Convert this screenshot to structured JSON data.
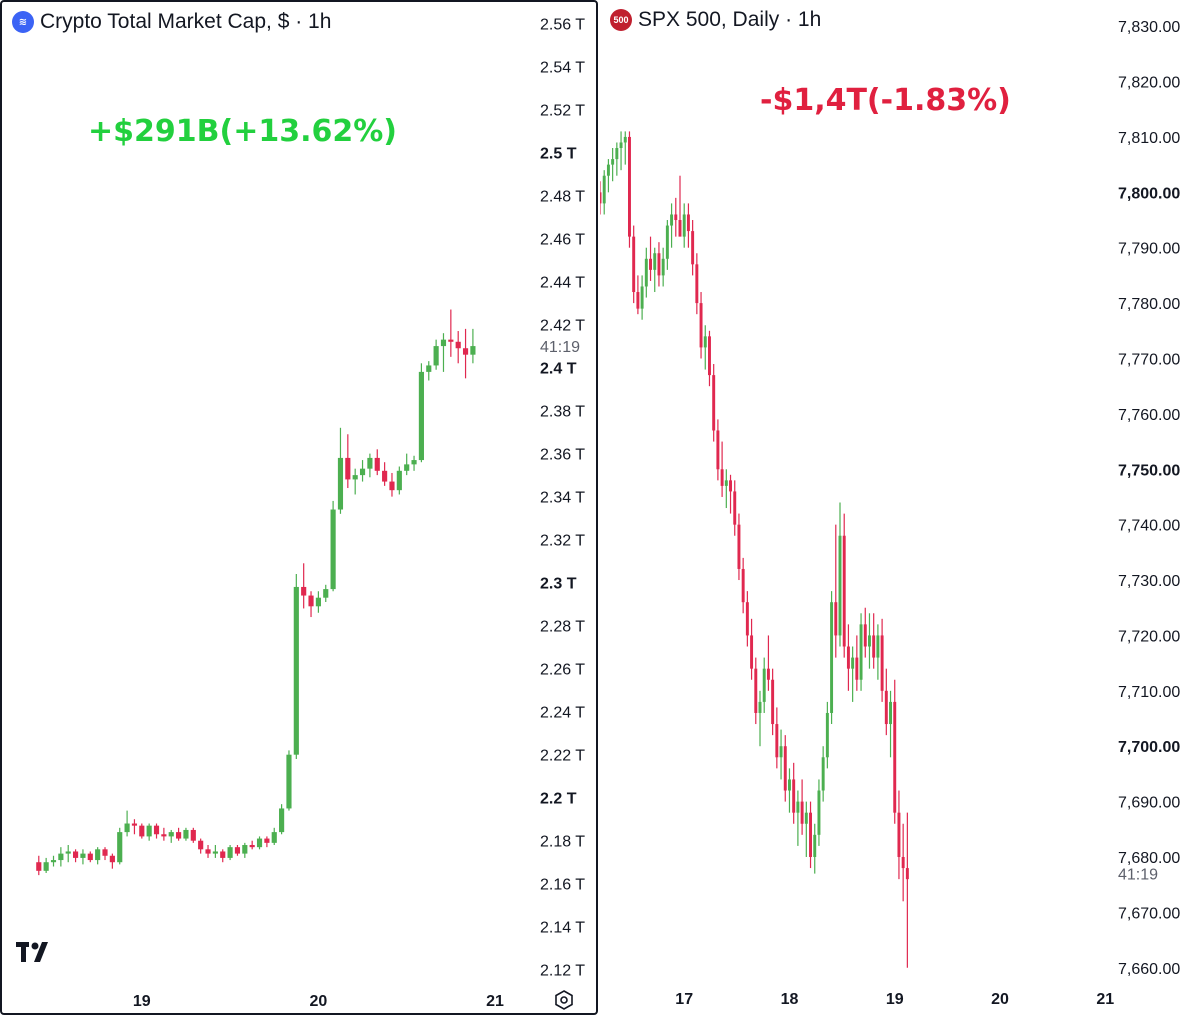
{
  "left": {
    "title": "Crypto Total Market Cap, $ · 1h",
    "icon": "crypto-market-cap-icon",
    "change_label": "+$291B(+13.62%)",
    "change_color": "#22d03e",
    "countdown": "41:19",
    "logo": "tradingview-logo-icon",
    "settings_icon": "gear-icon"
  },
  "right": {
    "title": "SPX 500, Daily · 1h",
    "icon_label": "500",
    "change_label": "-$1,4T(-1.83%)",
    "change_color": "#e0203f",
    "countdown": "41:19"
  },
  "colors": {
    "up": "#4caf50",
    "down": "#e0284f",
    "text": "#131722"
  },
  "chart_data": [
    {
      "type": "candlestick",
      "title": "Crypto Total Market Cap, $ · 1h",
      "y_unit": "T",
      "ylim": [
        2.105,
        2.57
      ],
      "y_ticks": [
        {
          "label": "2.56 T",
          "value": 2.56,
          "bold": false
        },
        {
          "label": "2.54 T",
          "value": 2.54,
          "bold": false
        },
        {
          "label": "2.52 T",
          "value": 2.52,
          "bold": false
        },
        {
          "label": "2.5 T",
          "value": 2.5,
          "bold": true
        },
        {
          "label": "2.48 T",
          "value": 2.48,
          "bold": false
        },
        {
          "label": "2.46 T",
          "value": 2.46,
          "bold": false
        },
        {
          "label": "2.44 T",
          "value": 2.44,
          "bold": false
        },
        {
          "label": "2.42 T",
          "value": 2.42,
          "bold": false
        },
        {
          "label": "2.4 T",
          "value": 2.4,
          "bold": true
        },
        {
          "label": "2.38 T",
          "value": 2.38,
          "bold": false
        },
        {
          "label": "2.36 T",
          "value": 2.36,
          "bold": false
        },
        {
          "label": "2.34 T",
          "value": 2.34,
          "bold": false
        },
        {
          "label": "2.32 T",
          "value": 2.32,
          "bold": false
        },
        {
          "label": "2.3 T",
          "value": 2.3,
          "bold": true
        },
        {
          "label": "2.28 T",
          "value": 2.28,
          "bold": false
        },
        {
          "label": "2.26 T",
          "value": 2.26,
          "bold": false
        },
        {
          "label": "2.24 T",
          "value": 2.24,
          "bold": false
        },
        {
          "label": "2.22 T",
          "value": 2.22,
          "bold": false
        },
        {
          "label": "2.2 T",
          "value": 2.2,
          "bold": true
        },
        {
          "label": "2.18 T",
          "value": 2.18,
          "bold": false
        },
        {
          "label": "2.16 T",
          "value": 2.16,
          "bold": false
        },
        {
          "label": "2.14 T",
          "value": 2.14,
          "bold": false
        },
        {
          "label": "2.12 T",
          "value": 2.12,
          "bold": false
        }
      ],
      "x_ticks": [
        {
          "label": "19",
          "index": 14
        },
        {
          "label": "20",
          "index": 38
        },
        {
          "label": "21",
          "index": 62
        }
      ],
      "x_range": [
        -5,
        76
      ],
      "last_price": 2.41,
      "candles": [
        [
          2.17,
          2.173,
          2.164,
          2.166
        ],
        [
          2.166,
          2.172,
          2.165,
          2.17
        ],
        [
          2.17,
          2.173,
          2.168,
          2.171
        ],
        [
          2.171,
          2.177,
          2.168,
          2.174
        ],
        [
          2.174,
          2.178,
          2.17,
          2.175
        ],
        [
          2.175,
          2.176,
          2.17,
          2.172
        ],
        [
          2.172,
          2.176,
          2.169,
          2.174
        ],
        [
          2.174,
          2.175,
          2.17,
          2.171
        ],
        [
          2.171,
          2.177,
          2.169,
          2.176
        ],
        [
          2.176,
          2.177,
          2.171,
          2.173
        ],
        [
          2.173,
          2.174,
          2.167,
          2.17
        ],
        [
          2.17,
          2.186,
          2.169,
          2.184
        ],
        [
          2.184,
          2.194,
          2.182,
          2.188
        ],
        [
          2.188,
          2.19,
          2.183,
          2.187
        ],
        [
          2.187,
          2.188,
          2.181,
          2.182
        ],
        [
          2.182,
          2.188,
          2.18,
          2.187
        ],
        [
          2.187,
          2.188,
          2.181,
          2.183
        ],
        [
          2.183,
          2.186,
          2.18,
          2.182
        ],
        [
          2.182,
          2.185,
          2.179,
          2.184
        ],
        [
          2.184,
          2.186,
          2.18,
          2.181
        ],
        [
          2.181,
          2.186,
          2.18,
          2.185
        ],
        [
          2.185,
          2.186,
          2.179,
          2.18
        ],
        [
          2.18,
          2.181,
          2.174,
          2.176
        ],
        [
          2.176,
          2.178,
          2.172,
          2.174
        ],
        [
          2.174,
          2.178,
          2.172,
          2.175
        ],
        [
          2.175,
          2.176,
          2.17,
          2.172
        ],
        [
          2.172,
          2.178,
          2.171,
          2.177
        ],
        [
          2.177,
          2.178,
          2.173,
          2.174
        ],
        [
          2.174,
          2.179,
          2.172,
          2.178
        ],
        [
          2.178,
          2.18,
          2.176,
          2.177
        ],
        [
          2.177,
          2.182,
          2.176,
          2.181
        ],
        [
          2.181,
          2.182,
          2.177,
          2.179
        ],
        [
          2.179,
          2.186,
          2.178,
          2.184
        ],
        [
          2.184,
          2.197,
          2.183,
          2.195
        ],
        [
          2.195,
          2.222,
          2.194,
          2.22
        ],
        [
          2.22,
          2.304,
          2.218,
          2.298
        ],
        [
          2.298,
          2.309,
          2.288,
          2.294
        ],
        [
          2.294,
          2.296,
          2.284,
          2.289
        ],
        [
          2.289,
          2.296,
          2.286,
          2.293
        ],
        [
          2.293,
          2.299,
          2.291,
          2.297
        ],
        [
          2.297,
          2.338,
          2.296,
          2.334
        ],
        [
          2.334,
          2.372,
          2.332,
          2.358
        ],
        [
          2.358,
          2.369,
          2.344,
          2.348
        ],
        [
          2.348,
          2.353,
          2.341,
          2.35
        ],
        [
          2.35,
          2.357,
          2.347,
          2.353
        ],
        [
          2.353,
          2.36,
          2.349,
          2.358
        ],
        [
          2.358,
          2.362,
          2.35,
          2.352
        ],
        [
          2.352,
          2.356,
          2.345,
          2.347
        ],
        [
          2.347,
          2.351,
          2.34,
          2.343
        ],
        [
          2.343,
          2.354,
          2.341,
          2.352
        ],
        [
          2.352,
          2.36,
          2.35,
          2.355
        ],
        [
          2.355,
          2.359,
          2.352,
          2.357
        ],
        [
          2.357,
          2.402,
          2.356,
          2.398
        ],
        [
          2.398,
          2.403,
          2.394,
          2.401
        ],
        [
          2.401,
          2.413,
          2.399,
          2.41
        ],
        [
          2.41,
          2.416,
          2.398,
          2.413
        ],
        [
          2.413,
          2.427,
          2.405,
          2.412
        ],
        [
          2.412,
          2.417,
          2.402,
          2.409
        ],
        [
          2.409,
          2.418,
          2.395,
          2.406
        ],
        [
          2.406,
          2.418,
          2.402,
          2.41
        ]
      ]
    },
    {
      "type": "candlestick",
      "title": "SPX 500, Daily · 1h",
      "ylim": [
        7654,
        7834
      ],
      "y_ticks": [
        {
          "label": "7,830.00",
          "value": 7830,
          "bold": false
        },
        {
          "label": "7,820.00",
          "value": 7820,
          "bold": false
        },
        {
          "label": "7,810.00",
          "value": 7810,
          "bold": false
        },
        {
          "label": "7,800.00",
          "value": 7800,
          "bold": true
        },
        {
          "label": "7,790.00",
          "value": 7790,
          "bold": false
        },
        {
          "label": "7,780.00",
          "value": 7780,
          "bold": false
        },
        {
          "label": "7,770.00",
          "value": 7770,
          "bold": false
        },
        {
          "label": "7,760.00",
          "value": 7760,
          "bold": false
        },
        {
          "label": "7,750.00",
          "value": 7750,
          "bold": true
        },
        {
          "label": "7,740.00",
          "value": 7740,
          "bold": false
        },
        {
          "label": "7,730.00",
          "value": 7730,
          "bold": false
        },
        {
          "label": "7,720.00",
          "value": 7720,
          "bold": false
        },
        {
          "label": "7,710.00",
          "value": 7710,
          "bold": false
        },
        {
          "label": "7,700.00",
          "value": 7700,
          "bold": true
        },
        {
          "label": "7,690.00",
          "value": 7690,
          "bold": false
        },
        {
          "label": "7,680.00",
          "value": 7680,
          "bold": false
        },
        {
          "label": "7,670.00",
          "value": 7670,
          "bold": false
        },
        {
          "label": "7,660.00",
          "value": 7660,
          "bold": false
        }
      ],
      "x_ticks": [
        {
          "label": "17",
          "index": 20
        },
        {
          "label": "18",
          "index": 45
        },
        {
          "label": "19",
          "index": 70
        },
        {
          "label": "20",
          "index": 95
        },
        {
          "label": "21",
          "index": 120
        }
      ],
      "x_range": [
        0,
        133
      ],
      "last_price": 7677,
      "candles": [
        [
          7800,
          7802,
          7796,
          7798
        ],
        [
          7798,
          7804,
          7796,
          7803
        ],
        [
          7803,
          7806,
          7800,
          7805
        ],
        [
          7805,
          7808,
          7802,
          7806
        ],
        [
          7806,
          7809,
          7803,
          7808
        ],
        [
          7808,
          7811,
          7804,
          7809
        ],
        [
          7809,
          7811,
          7805,
          7810
        ],
        [
          7810,
          7811,
          7790,
          7792
        ],
        [
          7792,
          7794,
          7780,
          7782
        ],
        [
          7782,
          7785,
          7778,
          7779
        ],
        [
          7779,
          7785,
          7777,
          7783
        ],
        [
          7783,
          7790,
          7781,
          7788
        ],
        [
          7788,
          7792,
          7784,
          7786
        ],
        [
          7786,
          7790,
          7782,
          7789
        ],
        [
          7789,
          7791,
          7783,
          7785
        ],
        [
          7785,
          7790,
          7783,
          7788
        ],
        [
          7788,
          7795,
          7786,
          7794
        ],
        [
          7794,
          7798,
          7790,
          7796
        ],
        [
          7796,
          7799,
          7792,
          7795
        ],
        [
          7795,
          7803,
          7793,
          7792
        ],
        [
          7792,
          7798,
          7790,
          7796
        ],
        [
          7796,
          7798,
          7790,
          7793
        ],
        [
          7793,
          7795,
          7785,
          7787
        ],
        [
          7787,
          7789,
          7778,
          7780
        ],
        [
          7780,
          7782,
          7770,
          7772
        ],
        [
          7772,
          7776,
          7768,
          7774
        ],
        [
          7774,
          7775,
          7765,
          7767
        ],
        [
          7767,
          7769,
          7755,
          7757
        ],
        [
          7757,
          7759,
          7748,
          7750
        ],
        [
          7750,
          7755,
          7745,
          7747
        ],
        [
          7747,
          7750,
          7743,
          7748
        ],
        [
          7748,
          7749,
          7742,
          7746
        ],
        [
          7746,
          7748,
          7738,
          7740
        ],
        [
          7740,
          7742,
          7730,
          7732
        ],
        [
          7732,
          7734,
          7724,
          7726
        ],
        [
          7726,
          7728,
          7718,
          7720
        ],
        [
          7720,
          7723,
          7712,
          7714
        ],
        [
          7714,
          7716,
          7704,
          7706
        ],
        [
          7706,
          7710,
          7700,
          7708
        ],
        [
          7708,
          7716,
          7706,
          7714
        ],
        [
          7714,
          7720,
          7710,
          7712
        ],
        [
          7712,
          7714,
          7702,
          7704
        ],
        [
          7704,
          7707,
          7696,
          7698
        ],
        [
          7698,
          7703,
          7694,
          7700
        ],
        [
          7700,
          7702,
          7690,
          7692
        ],
        [
          7692,
          7696,
          7688,
          7694
        ],
        [
          7694,
          7697,
          7686,
          7688
        ],
        [
          7688,
          7692,
          7682,
          7690
        ],
        [
          7690,
          7694,
          7684,
          7686
        ],
        [
          7686,
          7690,
          7680,
          7688
        ],
        [
          7688,
          7690,
          7678,
          7680
        ],
        [
          7680,
          7686,
          7677,
          7684
        ],
        [
          7684,
          7694,
          7682,
          7692
        ],
        [
          7692,
          7700,
          7690,
          7698
        ],
        [
          7698,
          7708,
          7696,
          7706
        ],
        [
          7706,
          7728,
          7704,
          7726
        ],
        [
          7726,
          7740,
          7716,
          7720
        ],
        [
          7720,
          7744,
          7718,
          7738
        ],
        [
          7738,
          7742,
          7716,
          7718
        ],
        [
          7718,
          7722,
          7710,
          7714
        ],
        [
          7714,
          7718,
          7708,
          7716
        ],
        [
          7716,
          7720,
          7710,
          7712
        ],
        [
          7712,
          7724,
          7710,
          7722
        ],
        [
          7722,
          7725,
          7716,
          7718
        ],
        [
          7718,
          7724,
          7714,
          7720
        ],
        [
          7720,
          7724,
          7714,
          7716
        ],
        [
          7716,
          7722,
          7712,
          7720
        ],
        [
          7720,
          7723,
          7708,
          7710
        ],
        [
          7710,
          7714,
          7702,
          7704
        ],
        [
          7704,
          7710,
          7698,
          7708
        ],
        [
          7708,
          7712,
          7686,
          7688
        ],
        [
          7688,
          7692,
          7676,
          7680
        ],
        [
          7680,
          7686,
          7672,
          7678
        ],
        [
          7678,
          7688,
          7660,
          7676
        ]
      ]
    }
  ]
}
